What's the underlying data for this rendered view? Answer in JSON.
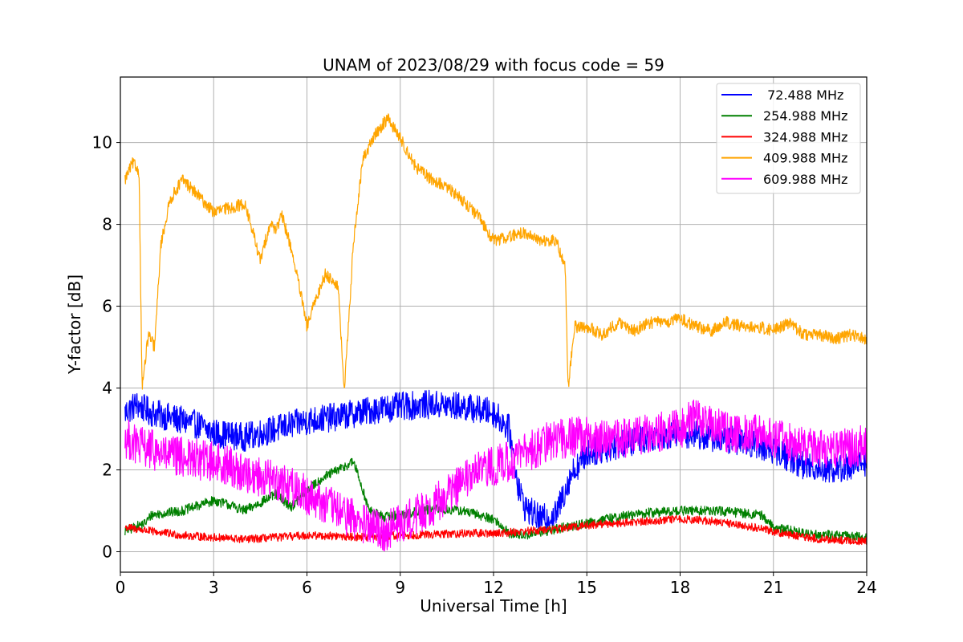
{
  "chart_data": {
    "type": "line",
    "title": "UNAM of 2023/08/29 with focus code = 59",
    "xlabel": "Universal Time [h]",
    "ylabel": "Y-factor [dB]",
    "xlim": [
      0,
      24
    ],
    "ylim": [
      -0.5,
      11.6
    ],
    "xticks": [
      0,
      3,
      6,
      9,
      12,
      15,
      18,
      21,
      24
    ],
    "yticks": [
      0,
      2,
      4,
      6,
      8,
      10
    ],
    "grid": true,
    "legend_position": "top-right",
    "series": [
      {
        "name": " 72.488 MHz",
        "color": "#0000ff",
        "noise": 0.35,
        "points": [
          [
            0.15,
            3.4
          ],
          [
            0.5,
            3.6
          ],
          [
            1.0,
            3.4
          ],
          [
            1.5,
            3.3
          ],
          [
            2.0,
            3.2
          ],
          [
            2.5,
            3.1
          ],
          [
            3.0,
            2.9
          ],
          [
            3.5,
            2.85
          ],
          [
            4.0,
            2.8
          ],
          [
            4.5,
            2.9
          ],
          [
            5.0,
            3.0
          ],
          [
            6.0,
            3.2
          ],
          [
            7.0,
            3.3
          ],
          [
            8.0,
            3.45
          ],
          [
            9.0,
            3.55
          ],
          [
            10.0,
            3.6
          ],
          [
            11.0,
            3.55
          ],
          [
            12.0,
            3.4
          ],
          [
            12.5,
            3.0
          ],
          [
            12.8,
            1.6
          ],
          [
            13.0,
            1.1
          ],
          [
            13.5,
            0.8
          ],
          [
            14.0,
            0.9
          ],
          [
            14.2,
            1.3
          ],
          [
            14.5,
            1.9
          ],
          [
            15.0,
            2.4
          ],
          [
            16.0,
            2.6
          ],
          [
            17.0,
            2.8
          ],
          [
            18.0,
            2.9
          ],
          [
            19.0,
            2.8
          ],
          [
            20.0,
            2.7
          ],
          [
            21.0,
            2.5
          ],
          [
            22.0,
            2.1
          ],
          [
            23.0,
            2.0
          ],
          [
            24.0,
            2.2
          ]
        ]
      },
      {
        "name": "254.988 MHz",
        "color": "#008000",
        "noise": 0.12,
        "points": [
          [
            0.15,
            0.5
          ],
          [
            0.8,
            0.7
          ],
          [
            1.0,
            0.9
          ],
          [
            2.0,
            1.0
          ],
          [
            3.0,
            1.25
          ],
          [
            3.5,
            1.15
          ],
          [
            4.0,
            1.0
          ],
          [
            4.5,
            1.2
          ],
          [
            5.0,
            1.4
          ],
          [
            5.5,
            1.1
          ],
          [
            6.0,
            1.5
          ],
          [
            6.5,
            1.8
          ],
          [
            7.0,
            2.0
          ],
          [
            7.5,
            2.2
          ],
          [
            7.8,
            1.5
          ],
          [
            8.0,
            1.0
          ],
          [
            8.5,
            0.85
          ],
          [
            9.0,
            0.9
          ],
          [
            10.0,
            1.05
          ],
          [
            11.0,
            1.0
          ],
          [
            11.5,
            0.9
          ],
          [
            12.0,
            0.8
          ],
          [
            12.5,
            0.45
          ],
          [
            13.0,
            0.4
          ],
          [
            14.0,
            0.55
          ],
          [
            15.0,
            0.7
          ],
          [
            16.0,
            0.85
          ],
          [
            17.0,
            0.95
          ],
          [
            18.0,
            1.0
          ],
          [
            19.0,
            1.0
          ],
          [
            20.0,
            0.95
          ],
          [
            20.6,
            0.9
          ],
          [
            21.0,
            0.6
          ],
          [
            22.0,
            0.45
          ],
          [
            23.0,
            0.4
          ],
          [
            24.0,
            0.35
          ]
        ]
      },
      {
        "name": "324.988 MHz",
        "color": "#ff0000",
        "noise": 0.1,
        "points": [
          [
            0.15,
            0.6
          ],
          [
            1.0,
            0.5
          ],
          [
            2.0,
            0.4
          ],
          [
            3.0,
            0.35
          ],
          [
            4.0,
            0.3
          ],
          [
            5.0,
            0.35
          ],
          [
            6.0,
            0.4
          ],
          [
            7.0,
            0.38
          ],
          [
            8.0,
            0.35
          ],
          [
            9.0,
            0.4
          ],
          [
            10.0,
            0.42
          ],
          [
            11.0,
            0.45
          ],
          [
            12.0,
            0.45
          ],
          [
            13.0,
            0.5
          ],
          [
            14.0,
            0.55
          ],
          [
            15.0,
            0.65
          ],
          [
            16.0,
            0.7
          ],
          [
            17.0,
            0.75
          ],
          [
            18.0,
            0.8
          ],
          [
            19.0,
            0.75
          ],
          [
            20.0,
            0.65
          ],
          [
            21.0,
            0.5
          ],
          [
            22.0,
            0.35
          ],
          [
            23.0,
            0.28
          ],
          [
            24.0,
            0.25
          ]
        ]
      },
      {
        "name": "409.988 MHz",
        "color": "#ffa500",
        "noise": 0.15,
        "points": [
          [
            0.15,
            9.1
          ],
          [
            0.4,
            9.5
          ],
          [
            0.6,
            9.3
          ],
          [
            0.7,
            4.0
          ],
          [
            0.9,
            5.3
          ],
          [
            1.1,
            5.0
          ],
          [
            1.3,
            7.5
          ],
          [
            1.6,
            8.6
          ],
          [
            2.0,
            9.1
          ],
          [
            2.5,
            8.7
          ],
          [
            3.0,
            8.3
          ],
          [
            3.5,
            8.4
          ],
          [
            4.0,
            8.5
          ],
          [
            4.3,
            7.7
          ],
          [
            4.5,
            7.1
          ],
          [
            4.8,
            8.0
          ],
          [
            5.0,
            7.9
          ],
          [
            5.2,
            8.2
          ],
          [
            5.5,
            7.4
          ],
          [
            5.8,
            6.3
          ],
          [
            6.0,
            5.5
          ],
          [
            6.3,
            6.2
          ],
          [
            6.6,
            6.8
          ],
          [
            7.0,
            6.5
          ],
          [
            7.2,
            3.9
          ],
          [
            7.5,
            7.6
          ],
          [
            7.8,
            9.6
          ],
          [
            8.2,
            10.2
          ],
          [
            8.6,
            10.6
          ],
          [
            9.0,
            10.1
          ],
          [
            9.5,
            9.4
          ],
          [
            10.0,
            9.1
          ],
          [
            10.5,
            8.9
          ],
          [
            11.0,
            8.6
          ],
          [
            11.5,
            8.2
          ],
          [
            12.0,
            7.6
          ],
          [
            12.5,
            7.7
          ],
          [
            13.0,
            7.8
          ],
          [
            13.5,
            7.6
          ],
          [
            14.0,
            7.6
          ],
          [
            14.3,
            7.0
          ],
          [
            14.4,
            4.0
          ],
          [
            14.6,
            5.5
          ],
          [
            15.0,
            5.5
          ],
          [
            15.5,
            5.3
          ],
          [
            16.0,
            5.6
          ],
          [
            16.5,
            5.4
          ],
          [
            17.0,
            5.6
          ],
          [
            17.5,
            5.6
          ],
          [
            18.0,
            5.7
          ],
          [
            18.5,
            5.5
          ],
          [
            19.0,
            5.4
          ],
          [
            19.5,
            5.6
          ],
          [
            20.0,
            5.5
          ],
          [
            20.5,
            5.5
          ],
          [
            21.0,
            5.4
          ],
          [
            21.5,
            5.6
          ],
          [
            22.0,
            5.3
          ],
          [
            22.5,
            5.3
          ],
          [
            23.0,
            5.2
          ],
          [
            23.5,
            5.3
          ],
          [
            24.0,
            5.2
          ]
        ]
      },
      {
        "name": "609.988 MHz",
        "color": "#ff00ff",
        "noise": 0.5,
        "points": [
          [
            0.15,
            2.8
          ],
          [
            0.5,
            2.6
          ],
          [
            1.0,
            2.5
          ],
          [
            1.5,
            2.35
          ],
          [
            2.0,
            2.3
          ],
          [
            2.5,
            2.25
          ],
          [
            3.0,
            2.2
          ],
          [
            3.5,
            2.1
          ],
          [
            4.0,
            1.9
          ],
          [
            4.5,
            1.85
          ],
          [
            5.0,
            1.75
          ],
          [
            5.5,
            1.6
          ],
          [
            6.0,
            1.4
          ],
          [
            6.5,
            1.2
          ],
          [
            7.0,
            1.0
          ],
          [
            7.5,
            0.8
          ],
          [
            8.0,
            0.6
          ],
          [
            8.5,
            0.5
          ],
          [
            9.0,
            0.7
          ],
          [
            9.5,
            0.9
          ],
          [
            10.0,
            1.1
          ],
          [
            10.5,
            1.4
          ],
          [
            11.0,
            1.7
          ],
          [
            11.5,
            1.95
          ],
          [
            12.0,
            2.1
          ],
          [
            12.5,
            2.2
          ],
          [
            13.0,
            2.4
          ],
          [
            13.5,
            2.6
          ],
          [
            14.0,
            2.75
          ],
          [
            14.5,
            2.8
          ],
          [
            15.0,
            2.8
          ],
          [
            15.5,
            2.7
          ],
          [
            16.0,
            2.8
          ],
          [
            16.5,
            2.8
          ],
          [
            17.0,
            2.9
          ],
          [
            18.0,
            3.0
          ],
          [
            18.5,
            3.3
          ],
          [
            19.0,
            3.1
          ],
          [
            19.5,
            2.9
          ],
          [
            20.0,
            2.9
          ],
          [
            20.5,
            2.85
          ],
          [
            21.0,
            2.8
          ],
          [
            22.0,
            2.6
          ],
          [
            23.0,
            2.5
          ],
          [
            24.0,
            2.6
          ]
        ]
      }
    ]
  }
}
